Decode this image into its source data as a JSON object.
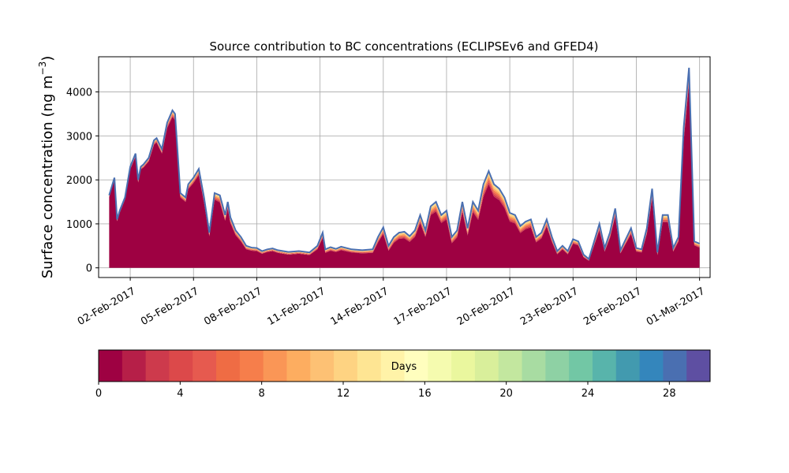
{
  "chart_data": {
    "type": "area",
    "title": "Source contribution to BC concentrations (ECLIPSEv6 and GFED4)",
    "ylabel": "Surface concentration (ng m",
    "ylabel_sup": "−3",
    "ylabel_close": ")",
    "xlim": [
      "2017-01-31T12:00",
      "2017-03-01T12:00"
    ],
    "ylim": [
      -220,
      4800
    ],
    "grid": true,
    "x_ticks": [
      {
        "date": "2017-02-02",
        "label": "02-Feb-2017"
      },
      {
        "date": "2017-02-05",
        "label": "05-Feb-2017"
      },
      {
        "date": "2017-02-08",
        "label": "08-Feb-2017"
      },
      {
        "date": "2017-02-11",
        "label": "11-Feb-2017"
      },
      {
        "date": "2017-02-14",
        "label": "14-Feb-2017"
      },
      {
        "date": "2017-02-17",
        "label": "17-Feb-2017"
      },
      {
        "date": "2017-02-20",
        "label": "20-Feb-2017"
      },
      {
        "date": "2017-02-23",
        "label": "23-Feb-2017"
      },
      {
        "date": "2017-02-26",
        "label": "26-Feb-2017"
      },
      {
        "date": "2017-03-01",
        "label": "01-Mar-2017"
      }
    ],
    "y_ticks": [
      0,
      1000,
      2000,
      3000,
      4000
    ],
    "series": [
      {
        "x": [
          "2017-02-01T00:00",
          "2017-02-01T06:00",
          "2017-02-01T09:00",
          "2017-02-01T12:00",
          "2017-02-01T18:00",
          "2017-02-02T00:00",
          "2017-02-02T06:00",
          "2017-02-02T09:00",
          "2017-02-02T12:00",
          "2017-02-02T15:00",
          "2017-02-02T21:00",
          "2017-02-03T03:00",
          "2017-02-03T06:00",
          "2017-02-03T12:00",
          "2017-02-03T18:00",
          "2017-02-04T00:00",
          "2017-02-04T03:00",
          "2017-02-04T09:00",
          "2017-02-04T15:00",
          "2017-02-04T18:00",
          "2017-02-05T00:00",
          "2017-02-05T06:00",
          "2017-02-05T12:00",
          "2017-02-05T18:00",
          "2017-02-06T00:00",
          "2017-02-06T06:00",
          "2017-02-06T12:00",
          "2017-02-06T15:00",
          "2017-02-06T18:00",
          "2017-02-07T00:00",
          "2017-02-07T06:00",
          "2017-02-07T12:00",
          "2017-02-07T18:00",
          "2017-02-08T00:00",
          "2017-02-08T06:00",
          "2017-02-08T12:00",
          "2017-02-08T18:00",
          "2017-02-09T00:00",
          "2017-02-09T12:00",
          "2017-02-10T00:00",
          "2017-02-10T12:00",
          "2017-02-10T21:00",
          "2017-02-11T03:00",
          "2017-02-11T06:00",
          "2017-02-11T12:00",
          "2017-02-11T18:00",
          "2017-02-12T00:00",
          "2017-02-12T12:00",
          "2017-02-13T00:00",
          "2017-02-13T12:00",
          "2017-02-13T18:00",
          "2017-02-14T00:00",
          "2017-02-14T06:00",
          "2017-02-14T12:00",
          "2017-02-14T18:00",
          "2017-02-15T00:00",
          "2017-02-15T06:00",
          "2017-02-15T12:00",
          "2017-02-15T18:00",
          "2017-02-16T00:00",
          "2017-02-16T06:00",
          "2017-02-16T12:00",
          "2017-02-16T18:00",
          "2017-02-17T00:00",
          "2017-02-17T06:00",
          "2017-02-17T12:00",
          "2017-02-17T18:00",
          "2017-02-18T00:00",
          "2017-02-18T06:00",
          "2017-02-18T12:00",
          "2017-02-18T18:00",
          "2017-02-19T00:00",
          "2017-02-19T06:00",
          "2017-02-19T12:00",
          "2017-02-19T18:00",
          "2017-02-20T00:00",
          "2017-02-20T06:00",
          "2017-02-20T12:00",
          "2017-02-20T18:00",
          "2017-02-21T00:00",
          "2017-02-21T06:00",
          "2017-02-21T12:00",
          "2017-02-21T18:00",
          "2017-02-22T00:00",
          "2017-02-22T06:00",
          "2017-02-22T12:00",
          "2017-02-22T18:00",
          "2017-02-23T00:00",
          "2017-02-23T06:00",
          "2017-02-23T12:00",
          "2017-02-23T18:00",
          "2017-02-24T00:00",
          "2017-02-24T06:00",
          "2017-02-24T12:00",
          "2017-02-24T18:00",
          "2017-02-25T00:00",
          "2017-02-25T06:00",
          "2017-02-25T12:00",
          "2017-02-25T18:00",
          "2017-02-26T00:00",
          "2017-02-26T06:00",
          "2017-02-26T12:00",
          "2017-02-26T18:00",
          "2017-02-27T00:00",
          "2017-02-27T06:00",
          "2017-02-27T12:00",
          "2017-02-27T18:00",
          "2017-02-28T00:00",
          "2017-02-28T06:00",
          "2017-02-28T12:00",
          "2017-02-28T18:00",
          "2017-03-01T00:00"
        ],
        "total": [
          1650,
          2050,
          1100,
          1300,
          1600,
          2300,
          2600,
          2000,
          2300,
          2350,
          2500,
          2900,
          2950,
          2700,
          3300,
          3580,
          3500,
          1700,
          1600,
          1900,
          2050,
          2250,
          1600,
          800,
          1700,
          1650,
          1200,
          1500,
          1150,
          850,
          700,
          500,
          460,
          450,
          380,
          420,
          440,
          400,
          360,
          380,
          350,
          500,
          800,
          420,
          470,
          430,
          480,
          420,
          400,
          420,
          700,
          920,
          500,
          700,
          800,
          820,
          720,
          850,
          1200,
          850,
          1400,
          1500,
          1200,
          1300,
          700,
          850,
          1500,
          900,
          1500,
          1300,
          1900,
          2200,
          1900,
          1800,
          1600,
          1250,
          1200,
          950,
          1050,
          1100,
          700,
          800,
          1100,
          700,
          380,
          500,
          380,
          650,
          600,
          300,
          200,
          600,
          1000,
          450,
          800,
          1350,
          400,
          650,
          900,
          450,
          420,
          900,
          1800,
          350,
          1200,
          1200,
          450,
          700,
          3200,
          4550,
          600,
          550
        ],
        "remainder": [
          40,
          50,
          40,
          50,
          50,
          60,
          70,
          60,
          60,
          70,
          80,
          100,
          100,
          100,
          120,
          150,
          140,
          100,
          100,
          110,
          120,
          140,
          120,
          80,
          150,
          160,
          130,
          150,
          130,
          110,
          100,
          80,
          70,
          70,
          60,
          60,
          60,
          60,
          60,
          60,
          60,
          80,
          120,
          80,
          80,
          70,
          80,
          70,
          70,
          80,
          120,
          150,
          110,
          130,
          140,
          150,
          130,
          150,
          180,
          150,
          200,
          220,
          180,
          200,
          140,
          160,
          220,
          160,
          230,
          210,
          280,
          300,
          280,
          260,
          240,
          200,
          190,
          160,
          170,
          180,
          120,
          130,
          160,
          110,
          70,
          80,
          70,
          100,
          90,
          60,
          40,
          90,
          140,
          80,
          120,
          180,
          70,
          100,
          130,
          80,
          70,
          130,
          220,
          60,
          160,
          160,
          80,
          100,
          300,
          350,
          90,
          90
        ],
        "color": "#9e0142"
      }
    ],
    "colorbar": {
      "label": "Days",
      "range": [
        0,
        30
      ],
      "ticks": [
        0,
        4,
        8,
        12,
        16,
        20,
        24,
        28
      ],
      "colors": [
        "#9e0142",
        "#b61f48",
        "#cd3a4c",
        "#dc494a",
        "#e65a4f",
        "#ef6c44",
        "#f67e4b",
        "#fa9656",
        "#fdad60",
        "#fdc174",
        "#fed382",
        "#fee593",
        "#fff3a8",
        "#fffebe",
        "#f5fbaf",
        "#eaf79e",
        "#d9ef9b",
        "#c3e79f",
        "#a8dca2",
        "#8ed1a4",
        "#72c7a5",
        "#58b4ab",
        "#429aaf",
        "#3486bc",
        "#4a6fb1",
        "#5e4fa2"
      ]
    }
  }
}
